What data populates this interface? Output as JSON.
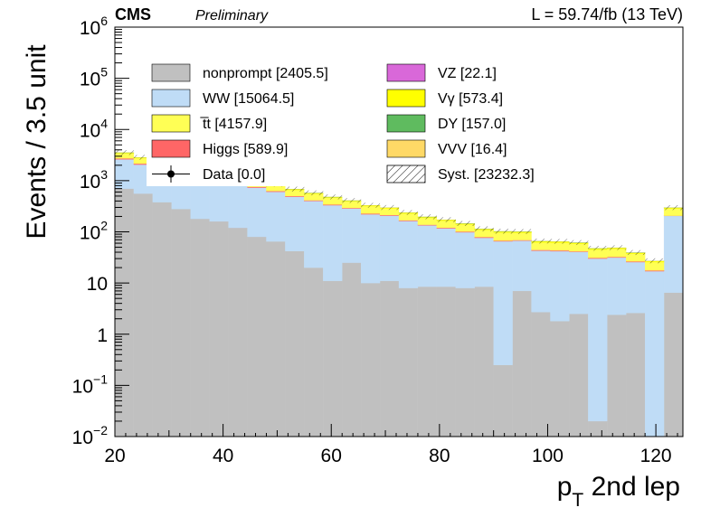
{
  "header": {
    "experiment": "CMS",
    "status": "Preliminary",
    "lumi": "L = 59.74/fb (13 TeV)"
  },
  "axes": {
    "xlabel_main": "p",
    "xlabel_sub": "T",
    "xlabel_rest": " 2nd lep",
    "ylabel": "Events / 3.5 unit"
  },
  "chart_data": {
    "type": "bar",
    "stacked": true,
    "ylog": true,
    "xlim": [
      20,
      125
    ],
    "ylim": [
      0.01,
      1000000
    ],
    "grid": false,
    "legend_position": "top-left (inside, two columns)",
    "bin_width": 3.5,
    "x_ticks": [
      "20",
      "40",
      "60",
      "80",
      "100",
      "120"
    ],
    "y_ticks": [
      {
        "value": 0.01,
        "base": "10",
        "exp": "−2"
      },
      {
        "value": 0.1,
        "base": "10",
        "exp": "−1"
      },
      {
        "value": 1,
        "base": "1",
        "exp": ""
      },
      {
        "value": 10,
        "base": "10",
        "exp": ""
      },
      {
        "value": 100,
        "base": "10",
        "exp": "2"
      },
      {
        "value": 1000,
        "base": "10",
        "exp": "3"
      },
      {
        "value": 10000,
        "base": "10",
        "exp": "4"
      },
      {
        "value": 100000,
        "base": "10",
        "exp": "5"
      },
      {
        "value": 1000000,
        "base": "10",
        "exp": "6"
      }
    ],
    "bins_low": [
      20,
      23.5,
      27,
      30.5,
      34,
      37.5,
      41,
      44.5,
      48,
      51.5,
      55,
      58.5,
      62,
      65.5,
      69,
      72.5,
      76,
      79.5,
      83,
      86.5,
      90,
      93.5,
      97,
      100.5,
      104,
      107.5,
      111,
      114.5,
      118,
      121.5
    ],
    "series": [
      {
        "name": "nonprompt",
        "color": "#c0c0c0",
        "values": [
          700,
          560,
          380,
          280,
          180,
          160,
          120,
          80,
          65,
          42,
          20,
          11,
          25,
          10,
          11,
          8,
          8.5,
          8.5,
          8,
          8.5,
          0.25,
          7,
          2.7,
          1.8,
          2.5,
          0.02,
          2.4,
          2.6,
          0.01,
          6.5
        ]
      },
      {
        "name": "WW",
        "color": "#bfdcf6",
        "values": [
          1900,
          1500,
          1550,
          1320,
          1150,
          900,
          730,
          650,
          540,
          440,
          380,
          320,
          260,
          210,
          195,
          155,
          125,
          108,
          90,
          68,
          65,
          60,
          40,
          40,
          38,
          30,
          29,
          23,
          17,
          198
        ]
      },
      {
        "name": "Higgs",
        "color": "#ff6666",
        "values": [
          120,
          90,
          80,
          60,
          50,
          40,
          30,
          25,
          20,
          16,
          13,
          10,
          8,
          7,
          6,
          5,
          4,
          3.5,
          3,
          2.5,
          2,
          2,
          1.5,
          1.5,
          1,
          1,
          1,
          0.8,
          0.6,
          2
        ]
      },
      {
        "name": "VZ",
        "color": "#d968d9",
        "values": [
          3,
          2.5,
          2,
          1.8,
          1.5,
          1.2,
          1,
          0.8,
          0.7,
          0.6,
          0.5,
          0.4,
          0.35,
          0.3,
          0.25,
          0.2,
          0.2,
          0.15,
          0.15,
          0.12,
          0.1,
          0.1,
          0.08,
          0.08,
          0.05,
          0.05,
          0.05,
          0.04,
          0.03,
          0.05
        ]
      },
      {
        "name": "t̅t",
        "color": "#ffff55",
        "values": [
          700,
          600,
          550,
          400,
          380,
          320,
          270,
          230,
          200,
          160,
          140,
          120,
          100,
          90,
          75,
          60,
          50,
          45,
          38,
          30,
          30,
          27,
          18,
          18,
          17,
          14,
          14,
          11,
          8,
          80
        ]
      },
      {
        "name": "Vγ",
        "color": "#ffff00",
        "values": [
          80,
          70,
          60,
          55,
          45,
          40,
          35,
          30,
          25,
          20,
          18,
          15,
          12,
          10,
          9,
          8,
          7,
          6,
          5,
          4,
          4,
          4,
          3,
          3,
          2.5,
          2,
          2,
          1.5,
          1.2,
          8
        ]
      },
      {
        "name": "DY",
        "color": "#5fbb5f",
        "values": [
          20,
          15,
          12,
          10,
          8,
          7,
          6,
          5,
          4,
          3,
          3,
          2.5,
          2,
          2,
          1.5,
          1.5,
          1.2,
          1,
          1,
          0.8,
          0.8,
          0.8,
          0.5,
          0.5,
          0.4,
          0.4,
          0.4,
          0.3,
          0.2,
          1.5
        ]
      },
      {
        "name": "VVV",
        "color": "#ffd966",
        "values": [
          3,
          2.5,
          2,
          1.5,
          1.2,
          1,
          0.8,
          0.7,
          0.6,
          0.5,
          0.4,
          0.35,
          0.3,
          0.25,
          0.2,
          0.2,
          0.15,
          0.12,
          0.1,
          0.1,
          0.08,
          0.08,
          0.06,
          0.05,
          0.05,
          0.04,
          0.04,
          0.03,
          0.02,
          0.2
        ]
      }
    ],
    "legend": [
      {
        "label": "nonprompt [2405.5]",
        "style": "fill",
        "color": "#c0c0c0"
      },
      {
        "label": "VZ [22.1]",
        "style": "fill",
        "color": "#d968d9"
      },
      {
        "label": "WW [15064.5]",
        "style": "fill",
        "color": "#bfdcf6"
      },
      {
        "label": "Vγ [573.4]",
        "style": "fill",
        "color": "#ffff00"
      },
      {
        "label": "t̅t [4157.9]",
        "style": "fill",
        "color": "#ffff55"
      },
      {
        "label": "DY [157.0]",
        "style": "fill",
        "color": "#5fbb5f"
      },
      {
        "label": "Higgs [589.9]",
        "style": "fill",
        "color": "#ff6666"
      },
      {
        "label": "VVV [16.4]",
        "style": "fill",
        "color": "#ffd966"
      },
      {
        "label": "Data [0.0]",
        "style": "marker",
        "color": "#000000"
      },
      {
        "label": "Syst. [23232.3]",
        "style": "hatch",
        "color": "#000000"
      }
    ]
  }
}
